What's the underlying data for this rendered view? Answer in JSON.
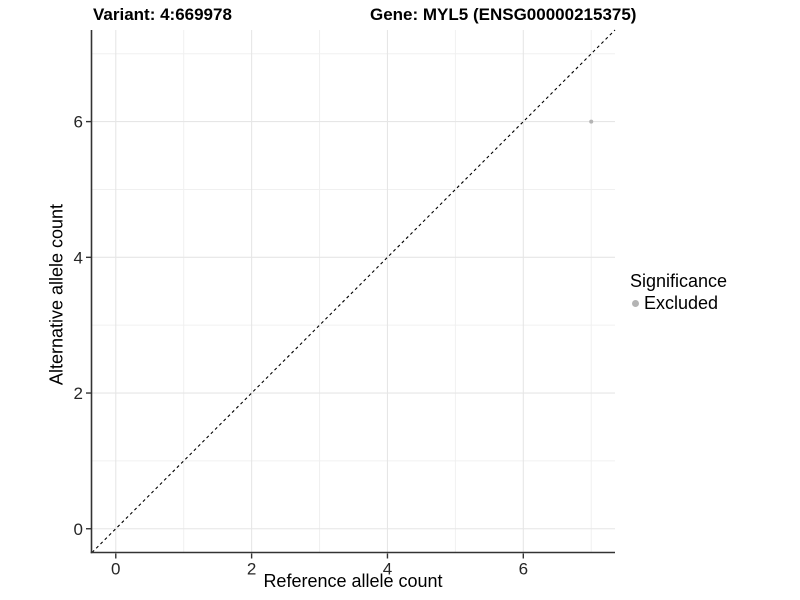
{
  "chart_data": {
    "type": "scatter",
    "title_left": "Variant: 4:669978",
    "title_right": "Gene: MYL5 (ENSG00000215375)",
    "xlabel": "Reference allele count",
    "ylabel": "Alternative allele count",
    "xlim": [
      -0.35,
      7.35
    ],
    "ylim": [
      -0.35,
      7.35
    ],
    "x_ticks": [
      0,
      2,
      4,
      6
    ],
    "y_ticks": [
      0,
      2,
      4,
      6
    ],
    "minor_ticks": [
      1,
      3,
      5,
      7
    ],
    "grid": "on",
    "legend_position": "right",
    "identity_line": {
      "style": "dashed",
      "slope": 1,
      "intercept": 0,
      "color": "#000000"
    },
    "series": [
      {
        "name": "Excluded",
        "color": "#b4b4b4",
        "points": [
          {
            "x": 7,
            "y": 6
          }
        ]
      }
    ],
    "legend": {
      "title": "Significance",
      "items": [
        {
          "label": "Excluded",
          "color": "#b4b4b4"
        }
      ]
    },
    "colors": {
      "background": "#ffffff",
      "axis_line": "#333333",
      "tick_mark": "#333333",
      "tick_label": "#262626",
      "major_grid": "#e6e6e6",
      "minor_grid": "#f0f0f0",
      "point": "#b4b4b4"
    }
  }
}
